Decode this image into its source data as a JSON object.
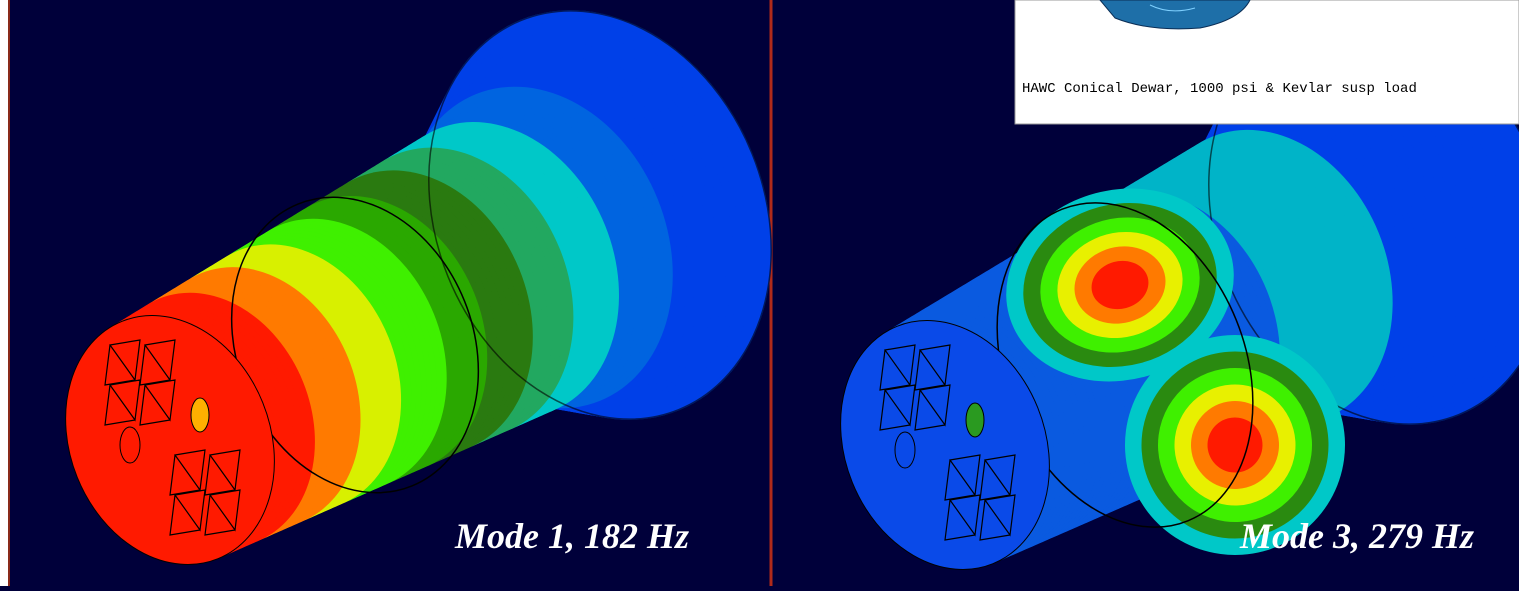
{
  "panels": [
    {
      "caption": "Mode 1, 182 Hz"
    },
    {
      "caption": "Mode 3, 279 Hz"
    }
  ],
  "inset": {
    "caption": "HAWC Conical Dewar, 1000 psi & Kevlar susp load"
  }
}
